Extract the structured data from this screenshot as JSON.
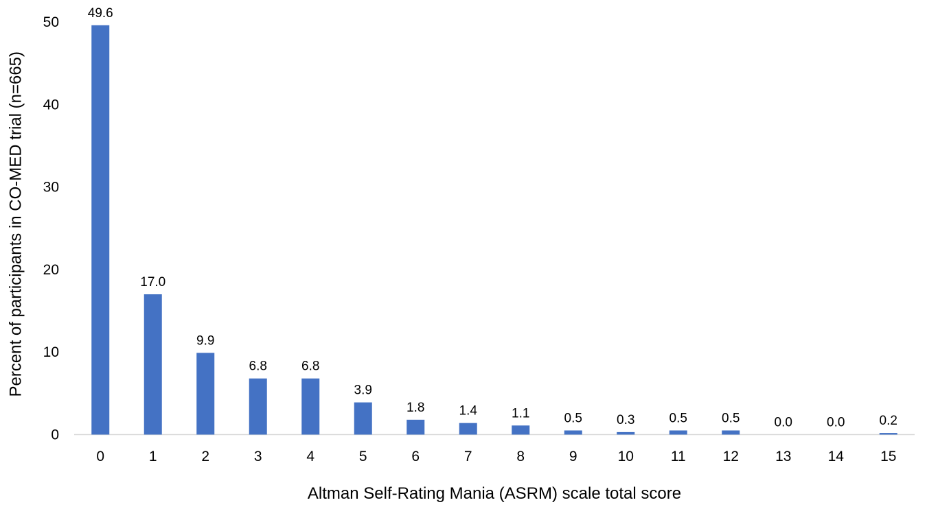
{
  "chart_data": {
    "type": "bar",
    "title": "",
    "xlabel": "Altman Self-Rating Mania (ASRM) scale total score",
    "ylabel": "Percent of participants in CO-MED trial (n=665)",
    "categories": [
      "0",
      "1",
      "2",
      "3",
      "4",
      "5",
      "6",
      "7",
      "8",
      "9",
      "10",
      "11",
      "12",
      "13",
      "14",
      "15"
    ],
    "values": [
      49.6,
      17.0,
      9.9,
      6.8,
      6.8,
      3.9,
      1.8,
      1.4,
      1.1,
      0.5,
      0.3,
      0.5,
      0.5,
      0.0,
      0.0,
      0.2
    ],
    "data_labels": [
      "49.6",
      "17.0",
      "9.9",
      "6.8",
      "6.8",
      "3.9",
      "1.8",
      "1.4",
      "1.1",
      "0.5",
      "0.3",
      "0.5",
      "0.5",
      "0.0",
      "0.0",
      "0.2"
    ],
    "yticks": [
      0,
      10,
      20,
      30,
      40,
      50
    ],
    "ylim": [
      0,
      50
    ],
    "grid": false,
    "legend": "none",
    "bar_color": "#4472C4",
    "axis_color": "#d9d9d9"
  }
}
